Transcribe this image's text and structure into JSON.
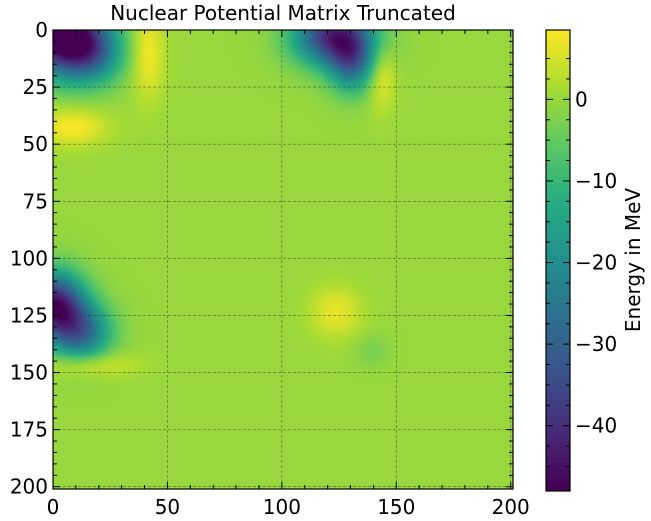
{
  "chart_data": {
    "type": "heatmap",
    "title": "Nuclear Potential Matrix Truncated",
    "xlabel": "",
    "ylabel": "",
    "colorbar_label": "Energy in MeV",
    "colormap": "viridis",
    "xlim": [
      0,
      201
    ],
    "ylim": [
      201,
      0
    ],
    "xticks": [
      0,
      50,
      100,
      150,
      200
    ],
    "yticks": [
      0,
      25,
      50,
      75,
      100,
      125,
      150,
      175,
      200
    ],
    "colorbar_range": [
      -48,
      8.5
    ],
    "colorbar_ticks": [
      0,
      -10,
      -20,
      -30,
      -40
    ],
    "grid": true,
    "background_value": 0,
    "features": [
      {
        "row": 0,
        "col": 0,
        "value": -48,
        "sigma_row": 12,
        "sigma_col": 12
      },
      {
        "row": 8,
        "col": 15,
        "value": -30,
        "sigma_row": 10,
        "sigma_col": 10
      },
      {
        "row": 42,
        "col": 8,
        "value": 8.5,
        "sigma_row": 6,
        "sigma_col": 11
      },
      {
        "row": 10,
        "col": 41,
        "value": 8.5,
        "sigma_row": 14,
        "sigma_col": 5
      },
      {
        "row": 2,
        "col": 122,
        "value": -40,
        "sigma_row": 9,
        "sigma_col": 12
      },
      {
        "row": 14,
        "col": 130,
        "value": -24,
        "sigma_row": 9,
        "sigma_col": 7
      },
      {
        "row": 20,
        "col": 143,
        "value": 8,
        "sigma_row": 10,
        "sigma_col": 4
      },
      {
        "row": 120,
        "col": 0,
        "value": -44,
        "sigma_row": 10,
        "sigma_col": 9
      },
      {
        "row": 132,
        "col": 12,
        "value": -26,
        "sigma_row": 9,
        "sigma_col": 9
      },
      {
        "row": 146,
        "col": 14,
        "value": 8,
        "sigma_row": 4,
        "sigma_col": 14
      },
      {
        "row": 123,
        "col": 123,
        "value": 7,
        "sigma_row": 8,
        "sigma_col": 8
      },
      {
        "row": 140,
        "col": 139,
        "value": -3,
        "sigma_row": 5,
        "sigma_col": 5
      }
    ]
  }
}
